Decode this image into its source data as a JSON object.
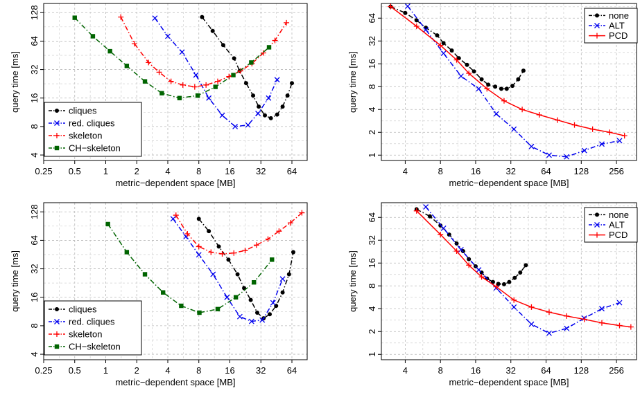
{
  "chart_data": [
    {
      "type": "line",
      "xlabel": "metric−dependent space [MB]",
      "ylabel": "query time [ms]",
      "xscale": "log2",
      "yscale": "log2",
      "xlim": [
        0.25,
        90
      ],
      "ylim": [
        3.5,
        160
      ],
      "xticks": [
        "0.25",
        "0.5",
        "1",
        "2",
        "4",
        "8",
        "16",
        "32",
        "64"
      ],
      "yticks": [
        "4",
        "8",
        "16",
        "32",
        "64",
        "128"
      ],
      "grid": true,
      "legend_position": "bottom-left",
      "series": [
        {
          "name": "cliques",
          "color": "#000000",
          "marker": "dot",
          "dash": "dashdot",
          "x": [
            8.6,
            10.9,
            13.8,
            17.6,
            19.9,
            23.0,
            26.9,
            30.5,
            35.0,
            40.0,
            46.0,
            52.0,
            58.0,
            64.0
          ],
          "y": [
            115,
            82,
            58,
            42,
            31,
            23,
            17,
            13,
            10.5,
            9.8,
            10.7,
            13,
            17,
            23
          ]
        },
        {
          "name": "red. cliques",
          "color": "#0000ee",
          "marker": "x",
          "dash": "dashdot",
          "x": [
            3.0,
            4.0,
            5.5,
            7.5,
            10.0,
            13.5,
            18.0,
            24.0,
            30.0,
            38.0,
            46.0
          ],
          "y": [
            112,
            72,
            49,
            28,
            16,
            10.5,
            8,
            8.3,
            11,
            16,
            25
          ]
        },
        {
          "name": "skeleton",
          "color": "#ff0000",
          "marker": "plus",
          "dash": "dashdot",
          "x": [
            1.4,
            1.9,
            2.6,
            3.3,
            4.3,
            5.6,
            7.3,
            9.4,
            12.2,
            15.7,
            20.3,
            26.2,
            33.9,
            43.8,
            56.6
          ],
          "y": [
            115,
            60,
            38,
            30,
            24,
            22,
            21,
            22,
            24,
            27,
            31,
            37,
            48,
            65,
            100
          ]
        },
        {
          "name": "CH−skeleton",
          "color": "#006400",
          "marker": "square",
          "dash": "dashdot",
          "x": [
            0.5,
            0.75,
            1.1,
            1.6,
            2.4,
            3.5,
            5.2,
            7.8,
            11.6,
            17.3,
            25.8,
            38.4
          ],
          "y": [
            113,
            72,
            50,
            35,
            24,
            18,
            16,
            17,
            21,
            28,
            38,
            55
          ]
        }
      ]
    },
    {
      "type": "line",
      "xlabel": "metric−dependent space [MB]",
      "ylabel": "query time [ms]",
      "xscale": "log2",
      "yscale": "log2",
      "xlim": [
        2.5,
        380
      ],
      "ylim": [
        0.85,
        100
      ],
      "xticks": [
        "4",
        "8",
        "16",
        "32",
        "64",
        "128",
        "256"
      ],
      "yticks": [
        "1",
        "2",
        "4",
        "8",
        "16",
        "32",
        "64"
      ],
      "grid": true,
      "legend_position": "top-right",
      "series": [
        {
          "name": "none",
          "color": "#000000",
          "marker": "dot",
          "dash": "dashdot",
          "x": [
            3.0,
            4.0,
            5.0,
            6.0,
            7.5,
            8.5,
            10.0,
            11.5,
            13.5,
            15.5,
            18.0,
            20.5,
            23.5,
            26.5,
            29.5,
            33.0,
            37.0,
            41.0
          ],
          "y": [
            91,
            75,
            60,
            48,
            38,
            30,
            24,
            19,
            15.5,
            12.7,
            10,
            8.5,
            8,
            7.5,
            7.5,
            8.2,
            10,
            13
          ]
        },
        {
          "name": "ALT",
          "color": "#0000ee",
          "marker": "x",
          "dash": "dashdot",
          "x": [
            4.2,
            6.0,
            8.5,
            12.0,
            17.0,
            24.0,
            34.0,
            48.0,
            68.0,
            96.0,
            136.0,
            192.0,
            272.0
          ],
          "y": [
            92,
            45,
            22,
            11,
            7.5,
            3.5,
            2.2,
            1.3,
            1.0,
            0.95,
            1.15,
            1.4,
            1.55
          ]
        },
        {
          "name": "PCD",
          "color": "#ff0000",
          "marker": "plus",
          "dash": "solid",
          "x": [
            3.0,
            5.0,
            8.0,
            11.0,
            14.0,
            20.0,
            28.0,
            40.0,
            56.0,
            80.0,
            112.0,
            160.0,
            224.0,
            300.0
          ],
          "y": [
            91,
            50,
            28,
            18,
            12,
            7.5,
            5.2,
            4.0,
            3.4,
            2.9,
            2.5,
            2.2,
            2.0,
            1.8
          ]
        }
      ]
    },
    {
      "type": "line",
      "xlabel": "metric−dependent space [MB]",
      "ylabel": "query time [ms]",
      "xscale": "log2",
      "yscale": "log2",
      "xlim": [
        0.25,
        90
      ],
      "ylim": [
        3.5,
        160
      ],
      "xticks": [
        "0.25",
        "0.5",
        "1",
        "2",
        "4",
        "8",
        "16",
        "32",
        "64"
      ],
      "yticks": [
        "4",
        "8",
        "16",
        "32",
        "64",
        "128"
      ],
      "grid": true,
      "legend_position": "bottom-left",
      "series": [
        {
          "name": "cliques",
          "color": "#000000",
          "marker": "dot",
          "dash": "dashdot",
          "x": [
            8.0,
            10.0,
            12.5,
            15.5,
            19.0,
            22.0,
            25.5,
            29.5,
            34.0,
            39.0,
            45.0,
            52.0,
            60.0,
            66.0
          ],
          "y": [
            108,
            80,
            55,
            40,
            28,
            20,
            15,
            11,
            9.6,
            10.6,
            13,
            18,
            28,
            48
          ]
        },
        {
          "name": "red. cliques",
          "color": "#0000ee",
          "marker": "x",
          "dash": "dashdot",
          "x": [
            4.5,
            6.0,
            8.0,
            11.0,
            15.0,
            20.0,
            26.0,
            33.0,
            42.0,
            52.0
          ],
          "y": [
            108,
            70,
            45,
            28,
            16,
            10,
            8.9,
            9.2,
            14,
            25
          ]
        },
        {
          "name": "skeleton",
          "color": "#ff0000",
          "marker": "plus",
          "dash": "dashdot",
          "x": [
            4.8,
            6.2,
            8.0,
            10.5,
            13.5,
            17.5,
            22.5,
            29.0,
            37.5,
            48.0,
            62.0,
            80.0
          ],
          "y": [
            118,
            75,
            55,
            48,
            46,
            47,
            50,
            57,
            66,
            80,
            98,
            125
          ]
        },
        {
          "name": "CH−skeleton",
          "color": "#006400",
          "marker": "square",
          "dash": "dashdot",
          "x": [
            1.05,
            1.6,
            2.4,
            3.6,
            5.4,
            8.1,
            12.2,
            18.3,
            27.4,
            41.0
          ],
          "y": [
            95,
            48,
            28,
            18,
            13,
            11,
            12,
            16,
            23,
            40
          ]
        }
      ]
    },
    {
      "type": "line",
      "xlabel": "metric−dependent space [MB]",
      "ylabel": "query time [ms]",
      "xscale": "log2",
      "yscale": "log2",
      "xlim": [
        2.5,
        380
      ],
      "ylim": [
        0.85,
        100
      ],
      "xticks": [
        "4",
        "8",
        "16",
        "32",
        "64",
        "128",
        "256"
      ],
      "yticks": [
        "1",
        "2",
        "4",
        "8",
        "16",
        "32",
        "64"
      ],
      "grid": true,
      "legend_position": "top-right",
      "series": [
        {
          "name": "none",
          "color": "#000000",
          "marker": "dot",
          "dash": "dashdot",
          "x": [
            5.0,
            6.5,
            8.0,
            9.5,
            11.0,
            12.5,
            14.0,
            16.0,
            18.0,
            20.0,
            22.5,
            25.0,
            28.0,
            31.0,
            34.5,
            38.5,
            43.0
          ],
          "y": [
            82,
            66,
            50,
            38,
            29,
            23,
            18,
            14.5,
            12,
            10,
            9,
            8.5,
            8.4,
            9,
            10.2,
            12,
            15
          ]
        },
        {
          "name": "ALT",
          "color": "#0000ee",
          "marker": "x",
          "dash": "dashdot",
          "x": [
            6.0,
            8.5,
            12.0,
            17.0,
            24.0,
            34.0,
            48.0,
            68.0,
            96.0,
            136.0,
            192.0,
            272.0
          ],
          "y": [
            88,
            46,
            24,
            13,
            7.5,
            4.2,
            2.5,
            1.9,
            2.2,
            3.0,
            4.0,
            4.8
          ]
        },
        {
          "name": "PCD",
          "color": "#ff0000",
          "marker": "plus",
          "dash": "solid",
          "x": [
            5.0,
            8.0,
            11.0,
            14.0,
            18.0,
            24.0,
            34.0,
            48.0,
            68.0,
            96.0,
            136.0,
            192.0,
            272.0,
            340.0
          ],
          "y": [
            78,
            38,
            23,
            15,
            10.5,
            7.8,
            5.2,
            4.2,
            3.6,
            3.2,
            2.9,
            2.6,
            2.4,
            2.3
          ]
        }
      ]
    }
  ]
}
